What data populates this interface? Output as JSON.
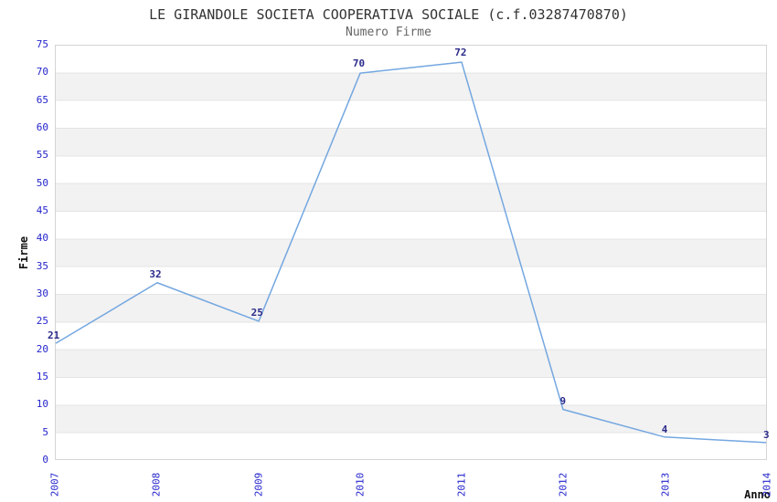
{
  "header": {
    "title": "LE GIRANDOLE SOCIETA COOPERATIVA SOCIALE (c.f.03287470870)",
    "subtitle": "Numero Firme"
  },
  "chart_data": {
    "type": "line",
    "title": "LE GIRANDOLE SOCIETA COOPERATIVA SOCIALE (c.f.03287470870)",
    "subtitle": "Numero Firme",
    "xlabel": "Anno",
    "ylabel": "Firme",
    "categories": [
      "2007",
      "2008",
      "2009",
      "2010",
      "2011",
      "2012",
      "2013",
      "2014"
    ],
    "series": [
      {
        "name": "Numero Firme",
        "values": [
          21,
          32,
          25,
          70,
          72,
          9,
          4,
          3
        ]
      }
    ],
    "ylim": [
      0,
      75
    ],
    "ytick_step": 5,
    "grid": "horizontal-bands",
    "legend": "none",
    "colors": {
      "line": "#74a7e0",
      "point_label": "#2b2b8c",
      "tick_label": "#2424cc",
      "band_gray": "#f2f2f2",
      "band_white": "#ffffff",
      "gridline": "#e4e4e4",
      "plot_border": "#d4d4d4",
      "title": "#333333",
      "subtitle": "#666666",
      "axis_title": "#111111"
    }
  }
}
